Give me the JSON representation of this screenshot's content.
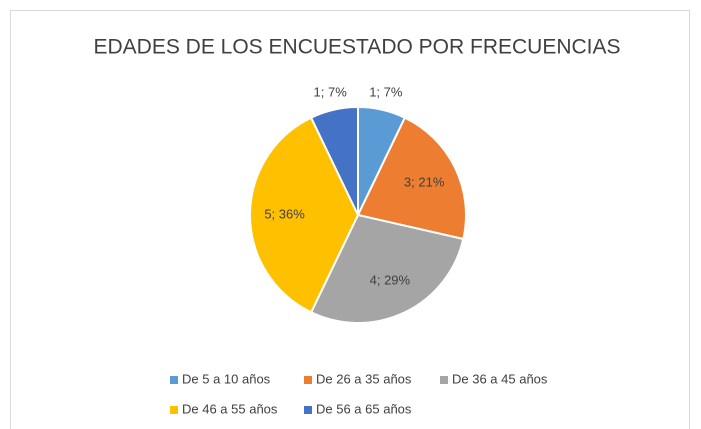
{
  "chart_data": {
    "type": "pie",
    "title": "EDADES DE LOS ENCUESTADO POR FRECUENCIAS",
    "categories": [
      "De 5 a 10 años",
      "De 26 a 35 años",
      "De 36 a 45 años",
      "De 46 a 55 años",
      "De 56 a 65 años"
    ],
    "values": [
      1,
      3,
      4,
      5,
      1
    ],
    "value_labels": [
      "1; 7%",
      "3; 21%",
      "4; 29%",
      "5; 36%",
      "1; 7%"
    ],
    "colors": [
      "#5b9bd5",
      "#ed7d31",
      "#a5a5a5",
      "#ffc000",
      "#4472c4"
    ],
    "legend": "bottom"
  }
}
